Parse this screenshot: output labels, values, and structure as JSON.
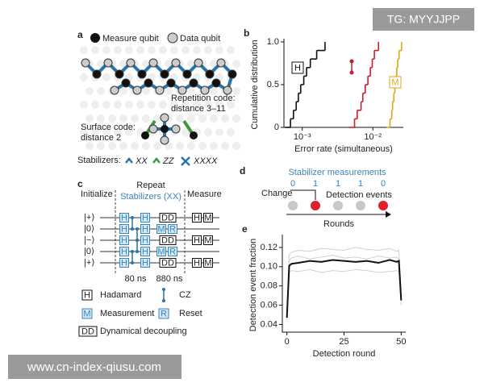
{
  "watermarks": [
    "TG: MYYJJPP",
    "www.cn-index-qiusu.com"
  ],
  "panel_a": {
    "label": "a",
    "legend": [
      "Measure qubit",
      "Data qubit"
    ],
    "repetition_code": [
      "Repetition code:",
      "distance 3–11"
    ],
    "surface_code": [
      "Surface code:",
      "distance 2"
    ],
    "stabilizers_label": "Stabilizers:",
    "stabilizers": [
      "XX",
      "ZZ",
      "XXXX"
    ]
  },
  "panel_c": {
    "label": "c",
    "initialize": "Initialize",
    "repeat": "Repeat",
    "stabilizers": "Stabilizers (XX)",
    "measure": "Measure",
    "states": [
      "|+⟩",
      "|0⟩",
      "|−⟩",
      "|0⟩",
      "|+⟩"
    ],
    "timings": [
      "80 ns",
      "880 ns"
    ],
    "gate_symbols": {
      "hadamard": "H",
      "measurement": "M",
      "reset": "R",
      "dd": "DD"
    },
    "legend": {
      "hadamard": "Hadamard",
      "cz": "CZ",
      "measurement": "Measurement",
      "reset": "Reset",
      "dd": "Dynamical decoupling"
    }
  },
  "panel_d": {
    "label": "d",
    "title": "Stabilizer measurements",
    "measurements": [
      "0",
      "1",
      "1",
      "1",
      "0"
    ],
    "change": "Change",
    "detection_events": "Detection events",
    "rounds": "Rounds"
  },
  "chart_data": [
    {
      "label": "b",
      "type": "step",
      "y_label": "Cumulative distribution",
      "x_label": "Error rate (simultaneous)",
      "log_x": true,
      "xlim": [
        0.00055,
        0.027
      ],
      "xticks": [
        {
          "value": 0.001,
          "label": "10⁻³"
        },
        {
          "value": 0.01,
          "label": "10⁻²"
        }
      ],
      "ylim": [
        0,
        1
      ],
      "yticks": [
        0,
        0.5,
        {
          "value": 1,
          "label": "1.0"
        }
      ],
      "series": [
        {
          "name": "H",
          "color": "#111111",
          "x": [
            0.0006,
            0.00068,
            0.00075,
            0.00082,
            0.00088,
            0.00095,
            0.00105,
            0.00115,
            0.0013,
            0.0016,
            0.0021
          ],
          "values": [
            0,
            0.1,
            0.2,
            0.3,
            0.4,
            0.5,
            0.6,
            0.7,
            0.8,
            0.9,
            1
          ]
        },
        {
          "color": "#c8202a",
          "x": [
            0.0048,
            0.0055,
            0.006,
            0.0068,
            0.0072,
            0.0078,
            0.0085,
            0.0092,
            0.0098,
            0.0105,
            0.012
          ],
          "values": [
            0,
            0.1,
            0.2,
            0.3,
            0.4,
            0.5,
            0.6,
            0.7,
            0.8,
            0.9,
            1
          ]
        },
        {
          "name": "M",
          "color": "#e0a41c",
          "x": [
            0.0165,
            0.0175,
            0.0185,
            0.019,
            0.0198,
            0.0205,
            0.021,
            0.0218,
            0.0225,
            0.0235,
            0.0255
          ],
          "values": [
            0,
            0.1,
            0.2,
            0.3,
            0.4,
            0.5,
            0.6,
            0.7,
            0.8,
            0.9,
            1
          ]
        }
      ]
    },
    {
      "label": "e",
      "type": "line",
      "x_label": "Detection round",
      "y_label": "Detection event fraction",
      "xlim": [
        -2,
        52
      ],
      "xticks": [
        0,
        25,
        50
      ],
      "ylim": [
        0.032,
        0.13
      ],
      "yticks": [
        0.04,
        0.06,
        0.08,
        {
          "value": 0.1,
          "label": "0.10"
        },
        0.12
      ],
      "x": [
        0,
        1,
        2,
        5,
        10,
        15,
        20,
        25,
        30,
        35,
        40,
        45,
        48,
        49,
        50
      ],
      "series": [
        {
          "color": "#d0d0d0",
          "values": [
            0.05,
            0.112,
            0.115,
            0.117,
            0.116,
            0.119,
            0.118,
            0.117,
            0.12,
            0.118,
            0.117,
            0.119,
            0.116,
            0.117,
            0.07
          ]
        },
        {
          "color": "#d0d0d0",
          "values": [
            0.045,
            0.094,
            0.096,
            0.095,
            0.097,
            0.094,
            0.096,
            0.095,
            0.097,
            0.096,
            0.094,
            0.095,
            0.096,
            0.095,
            0.06
          ]
        },
        {
          "color": "#d0d0d0",
          "values": [
            0.048,
            0.106,
            0.109,
            0.111,
            0.108,
            0.11,
            0.112,
            0.109,
            0.11,
            0.108,
            0.111,
            0.109,
            0.11,
            0.108,
            0.066
          ]
        },
        {
          "color": "#111111",
          "values": [
            0.047,
            0.101,
            0.103,
            0.104,
            0.106,
            0.105,
            0.107,
            0.106,
            0.105,
            0.106,
            0.104,
            0.107,
            0.105,
            0.106,
            0.065
          ]
        }
      ]
    }
  ]
}
